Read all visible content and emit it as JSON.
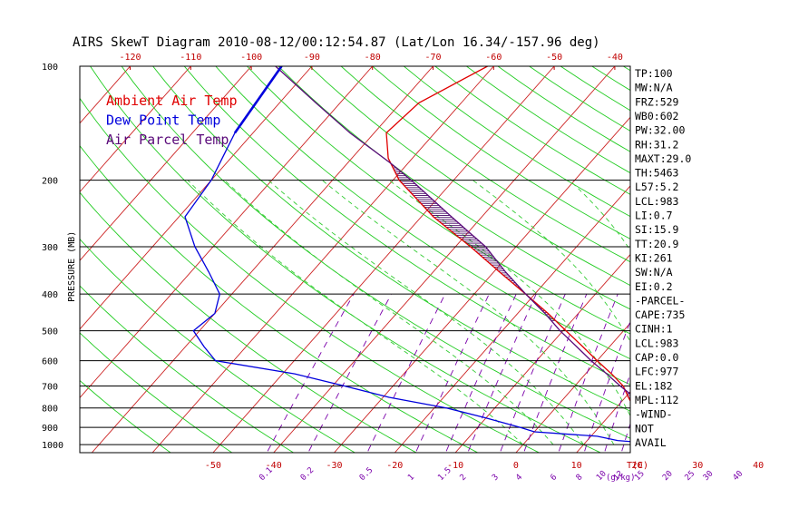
{
  "title": "AIRS SkewT Diagram 2010-08-12/00:12:54.87 (Lat/Lon 16.34/-157.96 deg)",
  "colors": {
    "ambient": "#e00000",
    "dewpoint": "#0000dd",
    "parcel": "#5a0a7a",
    "isotherm": "#cc2222",
    "dry_adiabat": "#22cc22",
    "moist_adiabat": "#33cc33",
    "mixing_ratio": "#7a00aa",
    "hatch": "#400060"
  },
  "chart_data": {
    "type": "line",
    "subtype": "skew-t log-p",
    "ylabel": "PRESSURE (MB)",
    "y_scale": "log",
    "ylim": [
      1050,
      100
    ],
    "y_tick_labels": [
      "100",
      "200",
      "300",
      "400",
      "500",
      "600",
      "700",
      "800",
      "900",
      "1000"
    ],
    "top_temp_ticks": [
      "-120",
      "-110",
      "-100",
      "-90",
      "-80",
      "-70",
      "-60",
      "-50",
      "-40"
    ],
    "bottom_temp_ticks": [
      "-50",
      "-40",
      "-30",
      "-20",
      "-10",
      "0",
      "10",
      "20",
      "30",
      "40"
    ],
    "bottom_unit_label": "T(C)",
    "mixing_ratio_labels": [
      "0.1",
      "0.2",
      "0.5",
      "1",
      "1.5",
      "2",
      "3",
      "4",
      "6",
      "8",
      "10",
      "12",
      "15",
      "20",
      "25",
      "30",
      "40"
    ],
    "mixing_ratio_unit": "(g/kg)",
    "legend": [
      {
        "name": "Ambient Air Temp",
        "color": "#e00000"
      },
      {
        "name": "Dew Point Temp",
        "color": "#0000dd"
      },
      {
        "name": "Air Parcel Temp",
        "color": "#5a0a7a"
      }
    ],
    "series": [
      {
        "name": "Ambient Air Temp",
        "points": [
          [
            1000,
            26
          ],
          [
            975,
            23
          ],
          [
            950,
            22
          ],
          [
            925,
            21
          ],
          [
            900,
            20
          ],
          [
            850,
            16.5
          ],
          [
            800,
            13
          ],
          [
            750,
            10.5
          ],
          [
            700,
            8
          ],
          [
            650,
            4.3
          ],
          [
            600,
            0
          ],
          [
            550,
            -4.5
          ],
          [
            500,
            -9.5
          ],
          [
            450,
            -15
          ],
          [
            400,
            -21.5
          ],
          [
            350,
            -29
          ],
          [
            300,
            -37.5
          ],
          [
            250,
            -48
          ],
          [
            200,
            -59
          ],
          [
            175,
            -64
          ],
          [
            150,
            -68
          ],
          [
            125,
            -67
          ],
          [
            100,
            -61
          ]
        ]
      },
      {
        "name": "Dew Point Temp",
        "points": [
          [
            1000,
            24
          ],
          [
            975,
            15
          ],
          [
            950,
            11
          ],
          [
            925,
            0
          ],
          [
            900,
            -3
          ],
          [
            850,
            -10
          ],
          [
            800,
            -18
          ],
          [
            750,
            -29
          ],
          [
            700,
            -38
          ],
          [
            650,
            -48
          ],
          [
            600,
            -63
          ],
          [
            550,
            -67
          ],
          [
            500,
            -71
          ],
          [
            450,
            -70
          ],
          [
            400,
            -72
          ],
          [
            350,
            -77
          ],
          [
            300,
            -83
          ],
          [
            250,
            -89
          ],
          [
            200,
            -90
          ],
          [
            150,
            -93
          ],
          [
            100,
            -95
          ]
        ]
      },
      {
        "name": "Air Parcel Temp",
        "points": [
          [
            1000,
            26
          ],
          [
            983,
            24
          ],
          [
            950,
            22.5
          ],
          [
            900,
            21
          ],
          [
            850,
            18.5
          ],
          [
            800,
            15.5
          ],
          [
            750,
            11.5
          ],
          [
            700,
            7.5
          ],
          [
            650,
            3.5
          ],
          [
            600,
            -1
          ],
          [
            550,
            -5.5
          ],
          [
            500,
            -10.5
          ],
          [
            450,
            -15.5
          ],
          [
            400,
            -21.5
          ],
          [
            350,
            -28
          ],
          [
            300,
            -35
          ],
          [
            250,
            -45
          ],
          [
            200,
            -57
          ],
          [
            180,
            -63
          ],
          [
            150,
            -74
          ],
          [
            125,
            -84
          ],
          [
            100,
            -96
          ]
        ]
      }
    ],
    "hatched_cape_regions": [
      [
        980,
        720
      ],
      [
        470,
        180
      ]
    ]
  },
  "indices": [
    "TP:100",
    "MW:N/A",
    "FRZ:529",
    "WB0:602",
    "PW:32.00",
    "RH:31.2",
    "MAXT:29.0",
    "TH:5463",
    "L57:5.2",
    "LCL:983",
    "LI:0.7",
    "SI:15.9",
    "TT:20.9",
    "KI:261",
    "SW:N/A",
    "EI:0.2",
    "-PARCEL-",
    "CAPE:735",
    "CINH:1",
    "LCL:983",
    "CAP:0.0",
    "LFC:977",
    "EL:182",
    "MPL:112",
    "-WIND-",
    "NOT",
    "AVAIL"
  ]
}
